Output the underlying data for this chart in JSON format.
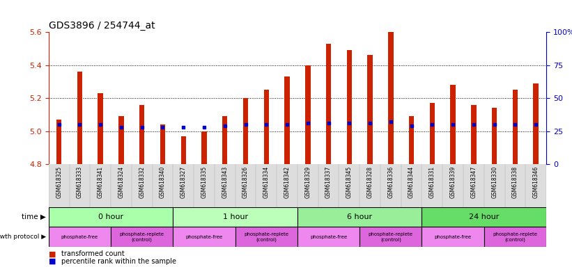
{
  "title": "GDS3896 / 254744_at",
  "samples": [
    "GSM618325",
    "GSM618333",
    "GSM618341",
    "GSM618324",
    "GSM618332",
    "GSM618340",
    "GSM618327",
    "GSM618335",
    "GSM618343",
    "GSM618326",
    "GSM618334",
    "GSM618342",
    "GSM618329",
    "GSM618337",
    "GSM618345",
    "GSM618328",
    "GSM618336",
    "GSM618344",
    "GSM618331",
    "GSM618339",
    "GSM618347",
    "GSM618330",
    "GSM618338",
    "GSM618346"
  ],
  "transformed_count": [
    5.07,
    5.36,
    5.23,
    5.09,
    5.16,
    5.04,
    4.97,
    5.0,
    5.09,
    5.2,
    5.25,
    5.33,
    5.4,
    5.53,
    5.49,
    5.46,
    5.6,
    5.09,
    5.17,
    5.28,
    5.16,
    5.14,
    5.25,
    5.29
  ],
  "percentile_rank": [
    30,
    30,
    30,
    28,
    28,
    28,
    28,
    28,
    29,
    30,
    30,
    30,
    31,
    31,
    31,
    31,
    32,
    29,
    30,
    30,
    30,
    30,
    30,
    30
  ],
  "ymin": 4.8,
  "ymax": 5.6,
  "yticks": [
    4.8,
    5.0,
    5.2,
    5.4,
    5.6
  ],
  "right_yticks": [
    0,
    25,
    50,
    75,
    100
  ],
  "bar_color": "#cc2200",
  "dot_color": "#0000cc",
  "time_groups": [
    {
      "label": "0 hour",
      "start": 0,
      "end": 6,
      "color": "#aaffaa"
    },
    {
      "label": "1 hour",
      "start": 6,
      "end": 12,
      "color": "#bbffbb"
    },
    {
      "label": "6 hour",
      "start": 12,
      "end": 18,
      "color": "#99ee99"
    },
    {
      "label": "24 hour",
      "start": 18,
      "end": 24,
      "color": "#66dd66"
    }
  ],
  "protocol_groups": [
    {
      "label": "phosphate-free",
      "start": 0,
      "end": 3,
      "color": "#ee88ee"
    },
    {
      "label": "phosphate-replete\n(control)",
      "start": 3,
      "end": 6,
      "color": "#dd66dd"
    },
    {
      "label": "phosphate-free",
      "start": 6,
      "end": 9,
      "color": "#ee88ee"
    },
    {
      "label": "phosphate-replete\n(control)",
      "start": 9,
      "end": 12,
      "color": "#dd66dd"
    },
    {
      "label": "phosphate-free",
      "start": 12,
      "end": 15,
      "color": "#ee88ee"
    },
    {
      "label": "phosphate-replete\n(control)",
      "start": 15,
      "end": 18,
      "color": "#dd66dd"
    },
    {
      "label": "phosphate-free",
      "start": 18,
      "end": 21,
      "color": "#ee88ee"
    },
    {
      "label": "phosphate-replete\n(control)",
      "start": 21,
      "end": 24,
      "color": "#dd66dd"
    }
  ],
  "bg_color": "#ffffff",
  "ax_bg_color": "#ffffff",
  "grid_color": "#000000",
  "title_color": "#000000",
  "left_axis_color": "#cc2200",
  "right_axis_color": "#0000cc",
  "bar_width": 0.25
}
